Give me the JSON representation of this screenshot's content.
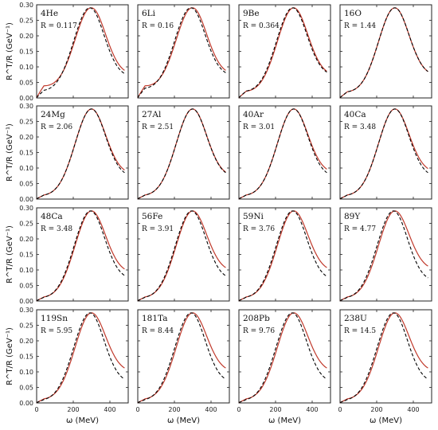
{
  "chart_data": {
    "type": "line",
    "layout": "4x4 grid of panels",
    "xlabel": "ω (MeV)",
    "ylabel": "R^T/R (GeV⁻¹)",
    "xlim": [
      0,
      500
    ],
    "ylim": [
      0,
      0.3
    ],
    "xticks": [
      0,
      200,
      400
    ],
    "yticks": [
      "0.00",
      "0.05",
      "0.10",
      "0.15",
      "0.20",
      "0.25",
      "0.30"
    ],
    "series_styles": {
      "solid": "#c0392b",
      "dashed": "#000000"
    },
    "panels": [
      {
        "nucleus": "4He",
        "r_label": "R = 0.117",
        "peak": 0.29,
        "solid_tail": 0.08,
        "dashed_tail": 0.072,
        "solid_low": 0.04,
        "dashed_low": 0.022,
        "shift": 8
      },
      {
        "nucleus": "6Li",
        "r_label": "R = 0.16",
        "peak": 0.29,
        "solid_tail": 0.08,
        "dashed_tail": 0.075,
        "solid_low": 0.04,
        "dashed_low": 0.03,
        "shift": 8
      },
      {
        "nucleus": "9Be",
        "r_label": "R = 0.364",
        "peak": 0.29,
        "solid_tail": 0.077,
        "dashed_tail": 0.076,
        "solid_low": 0.02,
        "dashed_low": 0.02,
        "shift": 5
      },
      {
        "nucleus": "16O",
        "r_label": "R = 1.44",
        "peak": 0.29,
        "solid_tail": 0.076,
        "dashed_tail": 0.076,
        "solid_low": 0.018,
        "dashed_low": 0.018,
        "shift": 0
      },
      {
        "nucleus": "24Mg",
        "r_label": "R = 2.06",
        "peak": 0.29,
        "solid_tail": 0.085,
        "dashed_tail": 0.076,
        "solid_low": 0.01,
        "dashed_low": 0.01,
        "shift": 0
      },
      {
        "nucleus": "27Al",
        "r_label": "R = 2.51",
        "peak": 0.29,
        "solid_tail": 0.078,
        "dashed_tail": 0.076,
        "solid_low": 0.01,
        "dashed_low": 0.01,
        "shift": 0
      },
      {
        "nucleus": "40Ar",
        "r_label": "R = 3.01",
        "peak": 0.29,
        "solid_tail": 0.088,
        "dashed_tail": 0.076,
        "solid_low": 0.01,
        "dashed_low": 0.01,
        "shift": 0
      },
      {
        "nucleus": "40Ca",
        "r_label": "R = 3.48",
        "peak": 0.29,
        "solid_tail": 0.09,
        "dashed_tail": 0.076,
        "solid_low": 0.01,
        "dashed_low": 0.01,
        "shift": 0
      },
      {
        "nucleus": "48Ca",
        "r_label": "R = 3.48",
        "peak": 0.29,
        "solid_tail": 0.095,
        "dashed_tail": 0.075,
        "solid_low": 0.01,
        "dashed_low": 0.008,
        "shift": 5
      },
      {
        "nucleus": "56Fe",
        "r_label": "R = 3.91",
        "peak": 0.29,
        "solid_tail": 0.1,
        "dashed_tail": 0.074,
        "solid_low": 0.01,
        "dashed_low": 0.008,
        "shift": 5
      },
      {
        "nucleus": "59Ni",
        "r_label": "R = 3.76",
        "peak": 0.29,
        "solid_tail": 0.1,
        "dashed_tail": 0.072,
        "solid_low": 0.01,
        "dashed_low": 0.008,
        "shift": 6
      },
      {
        "nucleus": "89Y",
        "r_label": "R = 4.77",
        "peak": 0.29,
        "solid_tail": 0.105,
        "dashed_tail": 0.068,
        "solid_low": 0.01,
        "dashed_low": 0.007,
        "shift": 8
      },
      {
        "nucleus": "119Sn",
        "r_label": "R = 5.95",
        "peak": 0.29,
        "solid_tail": 0.105,
        "dashed_tail": 0.07,
        "solid_low": 0.01,
        "dashed_low": 0.006,
        "shift": 8
      },
      {
        "nucleus": "181Ta",
        "r_label": "R = 8.44",
        "peak": 0.29,
        "solid_tail": 0.105,
        "dashed_tail": 0.07,
        "solid_low": 0.01,
        "dashed_low": 0.006,
        "shift": 8
      },
      {
        "nucleus": "208Pb",
        "r_label": "R = 9.76",
        "peak": 0.29,
        "solid_tail": 0.105,
        "dashed_tail": 0.07,
        "solid_low": 0.01,
        "dashed_low": 0.006,
        "shift": 8
      },
      {
        "nucleus": "238U",
        "r_label": "R = 14.5",
        "peak": 0.29,
        "solid_tail": 0.105,
        "dashed_tail": 0.07,
        "solid_low": 0.01,
        "dashed_low": 0.006,
        "shift": 8
      }
    ]
  }
}
